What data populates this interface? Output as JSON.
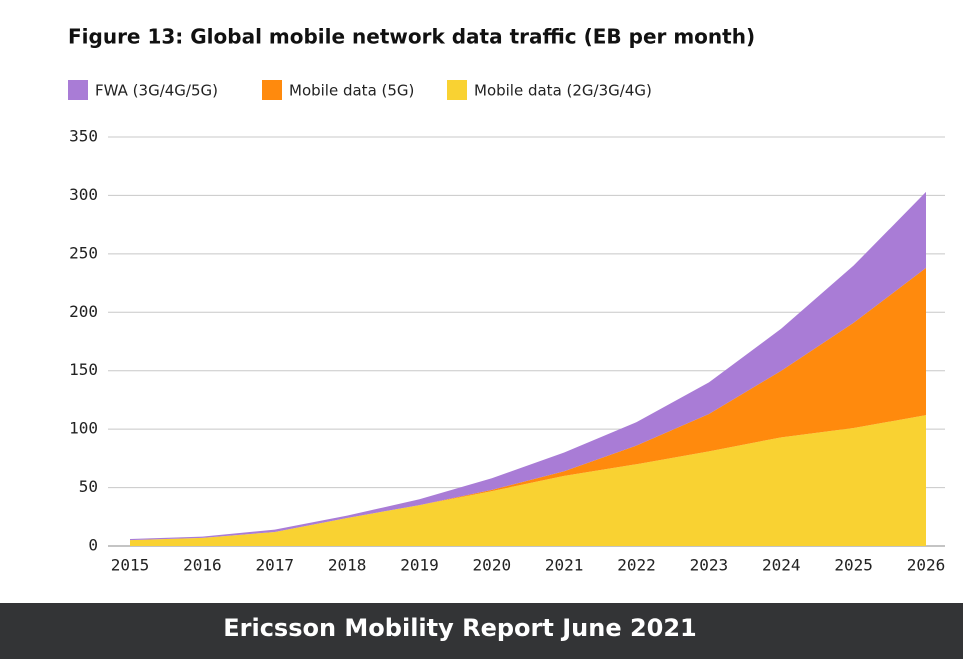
{
  "chart_data": {
    "type": "stacked-area",
    "title": "Figure 13: Global mobile network data traffic (EB per month)",
    "categories": [
      "2015",
      "2016",
      "2017",
      "2018",
      "2019",
      "2020",
      "2021",
      "2022",
      "2023",
      "2024",
      "2025",
      "2026"
    ],
    "series": [
      {
        "name": "FWA (3G/4G/5G)",
        "color": "#a97cd6",
        "values": [
          1,
          1,
          2,
          2,
          5,
          10,
          16,
          20,
          27,
          36,
          49,
          65
        ]
      },
      {
        "name": "Mobile data (5G)",
        "color": "#ff8a0d",
        "values": [
          0,
          0,
          0,
          0,
          0,
          1,
          4,
          16,
          32,
          57,
          90,
          126
        ]
      },
      {
        "name": "Mobile data (2G/3G/4G)",
        "color": "#f9d232",
        "values": [
          5,
          7,
          12,
          24,
          35,
          47,
          60,
          70,
          81,
          93,
          101,
          112
        ]
      }
    ],
    "ylim": [
      0,
      350
    ],
    "yticks": [
      0,
      50,
      100,
      150,
      200,
      250,
      300,
      350
    ],
    "grid": true
  },
  "footer": {
    "text": "Ericsson Mobility Report June 2021"
  }
}
